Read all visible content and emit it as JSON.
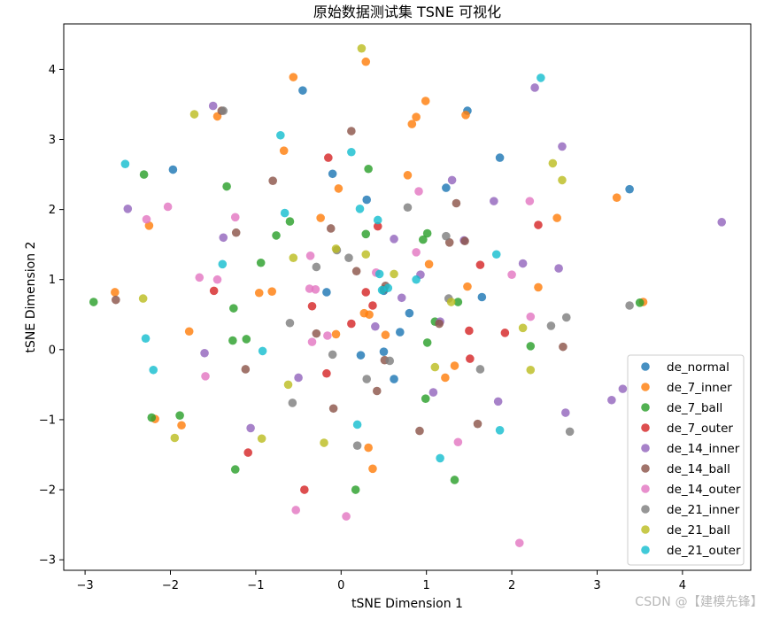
{
  "watermark": "CSDN @【建模先锋】",
  "chart_data": {
    "type": "scatter",
    "title": "原始数据测试集 TSNE 可视化",
    "xlabel": "tSNE Dimension 1",
    "ylabel": "tSNE Dimension 2",
    "xlim": [
      -3.25,
      4.8
    ],
    "ylim": [
      -3.15,
      4.65
    ],
    "xticks": [
      -3,
      -2,
      -1,
      0,
      1,
      2,
      3,
      4
    ],
    "yticks": [
      -3,
      -2,
      -1,
      0,
      1,
      2,
      3,
      4
    ],
    "grid": false,
    "legend_position": "lower-right",
    "series": [
      {
        "name": "de_normal",
        "color": "#1f77b4",
        "points": [
          [
            -0.45,
            3.7
          ],
          [
            1.48,
            3.41
          ],
          [
            -1.97,
            2.57
          ],
          [
            -0.1,
            2.51
          ],
          [
            1.86,
            2.74
          ],
          [
            1.23,
            2.31
          ],
          [
            3.38,
            2.29
          ],
          [
            0.3,
            2.14
          ],
          [
            -0.17,
            0.82
          ],
          [
            1.65,
            0.75
          ],
          [
            0.8,
            0.52
          ],
          [
            0.5,
            0.84
          ],
          [
            0.5,
            -0.03
          ],
          [
            0.23,
            -0.08
          ],
          [
            0.69,
            0.25
          ],
          [
            0.62,
            -0.42
          ]
        ]
      },
      {
        "name": "de_7_inner",
        "color": "#ff7f0e",
        "points": [
          [
            -0.56,
            3.89
          ],
          [
            0.29,
            4.11
          ],
          [
            0.99,
            3.55
          ],
          [
            0.88,
            3.32
          ],
          [
            0.83,
            3.22
          ],
          [
            1.46,
            3.35
          ],
          [
            -1.45,
            3.33
          ],
          [
            -0.67,
            2.84
          ],
          [
            0.78,
            2.49
          ],
          [
            -0.03,
            2.3
          ],
          [
            -2.25,
            1.77
          ],
          [
            -0.24,
            1.88
          ],
          [
            2.53,
            1.88
          ],
          [
            3.23,
            2.17
          ],
          [
            1.03,
            1.22
          ],
          [
            -2.65,
            0.82
          ],
          [
            -0.96,
            0.81
          ],
          [
            -0.81,
            0.83
          ],
          [
            1.48,
            0.9
          ],
          [
            2.31,
            0.89
          ],
          [
            3.54,
            0.68
          ],
          [
            0.27,
            0.52
          ],
          [
            0.33,
            0.5
          ],
          [
            -1.78,
            0.26
          ],
          [
            -0.06,
            0.22
          ],
          [
            0.52,
            0.21
          ],
          [
            1.33,
            -0.23
          ],
          [
            1.22,
            -0.4
          ],
          [
            -2.18,
            -0.99
          ],
          [
            -1.87,
            -1.08
          ],
          [
            0.32,
            -1.4
          ],
          [
            0.37,
            -1.7
          ]
        ]
      },
      {
        "name": "de_7_ball",
        "color": "#2ca02c",
        "points": [
          [
            0.32,
            2.58
          ],
          [
            -2.31,
            2.5
          ],
          [
            -1.34,
            2.33
          ],
          [
            -0.6,
            1.83
          ],
          [
            1.01,
            1.66
          ],
          [
            0.29,
            1.65
          ],
          [
            0.96,
            1.57
          ],
          [
            -0.76,
            1.63
          ],
          [
            -0.94,
            1.24
          ],
          [
            -2.9,
            0.68
          ],
          [
            1.37,
            0.68
          ],
          [
            3.5,
            0.67
          ],
          [
            -1.26,
            0.59
          ],
          [
            1.1,
            0.4
          ],
          [
            -1.27,
            0.13
          ],
          [
            -1.11,
            0.15
          ],
          [
            1.01,
            0.1
          ],
          [
            2.22,
            0.05
          ],
          [
            0.99,
            -0.7
          ],
          [
            -2.22,
            -0.97
          ],
          [
            -1.89,
            -0.94
          ],
          [
            -1.24,
            -1.71
          ],
          [
            0.17,
            -2.0
          ],
          [
            1.33,
            -1.86
          ]
        ]
      },
      {
        "name": "de_7_outer",
        "color": "#d62728",
        "points": [
          [
            -0.15,
            2.74
          ],
          [
            0.43,
            1.76
          ],
          [
            2.31,
            1.78
          ],
          [
            1.63,
            1.21
          ],
          [
            -1.49,
            0.84
          ],
          [
            0.29,
            0.82
          ],
          [
            0.37,
            0.63
          ],
          [
            -0.34,
            0.62
          ],
          [
            0.12,
            0.37
          ],
          [
            1.5,
            0.27
          ],
          [
            1.92,
            0.24
          ],
          [
            -0.17,
            -0.34
          ],
          [
            1.51,
            -0.13
          ],
          [
            -1.09,
            -1.47
          ],
          [
            -0.43,
            -2.0
          ]
        ]
      },
      {
        "name": "de_14_inner",
        "color": "#9467bd",
        "points": [
          [
            -1.5,
            3.48
          ],
          [
            2.27,
            3.74
          ],
          [
            2.59,
            2.9
          ],
          [
            1.3,
            2.42
          ],
          [
            -2.5,
            2.01
          ],
          [
            1.79,
            2.12
          ],
          [
            -1.38,
            1.6
          ],
          [
            0.62,
            1.58
          ],
          [
            1.44,
            1.56
          ],
          [
            4.46,
            1.82
          ],
          [
            2.13,
            1.23
          ],
          [
            2.55,
            1.16
          ],
          [
            0.93,
            1.07
          ],
          [
            0.71,
            0.74
          ],
          [
            1.16,
            0.4
          ],
          [
            0.4,
            0.33
          ],
          [
            -1.6,
            -0.05
          ],
          [
            -0.5,
            -0.4
          ],
          [
            1.08,
            -0.61
          ],
          [
            3.3,
            -0.56
          ],
          [
            3.17,
            -0.72
          ],
          [
            1.84,
            -0.74
          ],
          [
            2.63,
            -0.9
          ],
          [
            -1.06,
            -1.12
          ]
        ]
      },
      {
        "name": "de_14_ball",
        "color": "#8c564b",
        "points": [
          [
            -1.4,
            3.41
          ],
          [
            0.12,
            3.12
          ],
          [
            -0.8,
            2.41
          ],
          [
            1.35,
            2.09
          ],
          [
            -0.12,
            1.73
          ],
          [
            -1.23,
            1.67
          ],
          [
            1.27,
            1.53
          ],
          [
            1.45,
            1.55
          ],
          [
            0.18,
            1.12
          ],
          [
            -2.64,
            0.71
          ],
          [
            0.5,
            0.86
          ],
          [
            0.52,
            0.91
          ],
          [
            1.15,
            0.37
          ],
          [
            -0.29,
            0.23
          ],
          [
            2.6,
            0.04
          ],
          [
            -1.12,
            -0.28
          ],
          [
            0.51,
            -0.15
          ],
          [
            0.42,
            -0.59
          ],
          [
            -0.09,
            -0.84
          ],
          [
            0.92,
            -1.16
          ],
          [
            1.6,
            -1.06
          ]
        ]
      },
      {
        "name": "de_14_outer",
        "color": "#e377c2",
        "points": [
          [
            -2.03,
            2.04
          ],
          [
            -1.24,
            1.89
          ],
          [
            -2.28,
            1.86
          ],
          [
            0.91,
            2.26
          ],
          [
            2.21,
            2.12
          ],
          [
            -0.36,
            1.34
          ],
          [
            -1.66,
            1.03
          ],
          [
            -1.45,
            1.0
          ],
          [
            -0.37,
            0.87
          ],
          [
            -0.3,
            0.86
          ],
          [
            0.88,
            1.39
          ],
          [
            0.41,
            1.1
          ],
          [
            2.0,
            1.07
          ],
          [
            2.22,
            0.47
          ],
          [
            -0.16,
            0.2
          ],
          [
            -0.34,
            0.11
          ],
          [
            -1.59,
            -0.38
          ],
          [
            1.37,
            -1.32
          ],
          [
            -0.53,
            -2.29
          ],
          [
            0.06,
            -2.38
          ],
          [
            2.09,
            -2.76
          ]
        ]
      },
      {
        "name": "de_21_inner",
        "color": "#7f7f7f",
        "points": [
          [
            -1.38,
            3.41
          ],
          [
            -0.29,
            1.18
          ],
          [
            0.78,
            2.03
          ],
          [
            1.23,
            1.62
          ],
          [
            -0.05,
            1.42
          ],
          [
            0.09,
            1.31
          ],
          [
            1.26,
            0.73
          ],
          [
            3.38,
            0.63
          ],
          [
            2.64,
            0.46
          ],
          [
            2.46,
            0.34
          ],
          [
            -0.6,
            0.38
          ],
          [
            -0.1,
            -0.07
          ],
          [
            0.57,
            -0.16
          ],
          [
            0.3,
            -0.42
          ],
          [
            1.63,
            -0.28
          ],
          [
            -0.57,
            -0.76
          ],
          [
            2.68,
            -1.17
          ],
          [
            0.19,
            -1.37
          ]
        ]
      },
      {
        "name": "de_21_ball",
        "color": "#bcbd22",
        "points": [
          [
            0.24,
            4.3
          ],
          [
            -1.72,
            3.36
          ],
          [
            2.48,
            2.66
          ],
          [
            2.59,
            2.42
          ],
          [
            -0.56,
            1.31
          ],
          [
            0.29,
            1.36
          ],
          [
            0.62,
            1.08
          ],
          [
            -0.06,
            1.44
          ],
          [
            -2.32,
            0.73
          ],
          [
            1.29,
            0.68
          ],
          [
            2.13,
            0.31
          ],
          [
            1.1,
            -0.25
          ],
          [
            2.22,
            -0.29
          ],
          [
            -0.62,
            -0.5
          ],
          [
            -1.95,
            -1.26
          ],
          [
            -0.93,
            -1.27
          ],
          [
            -0.2,
            -1.33
          ]
        ]
      },
      {
        "name": "de_21_outer",
        "color": "#17becf",
        "points": [
          [
            2.34,
            3.88
          ],
          [
            -0.71,
            3.06
          ],
          [
            -2.53,
            2.65
          ],
          [
            0.12,
            2.82
          ],
          [
            -0.66,
            1.95
          ],
          [
            0.22,
            2.01
          ],
          [
            0.43,
            1.85
          ],
          [
            -1.39,
            1.22
          ],
          [
            1.82,
            1.36
          ],
          [
            0.45,
            1.08
          ],
          [
            0.88,
            1.0
          ],
          [
            0.48,
            0.85
          ],
          [
            0.55,
            0.88
          ],
          [
            -2.29,
            0.16
          ],
          [
            -0.92,
            -0.02
          ],
          [
            -2.2,
            -0.29
          ],
          [
            0.19,
            -1.07
          ],
          [
            1.16,
            -1.55
          ],
          [
            1.86,
            -1.15
          ]
        ]
      }
    ]
  }
}
